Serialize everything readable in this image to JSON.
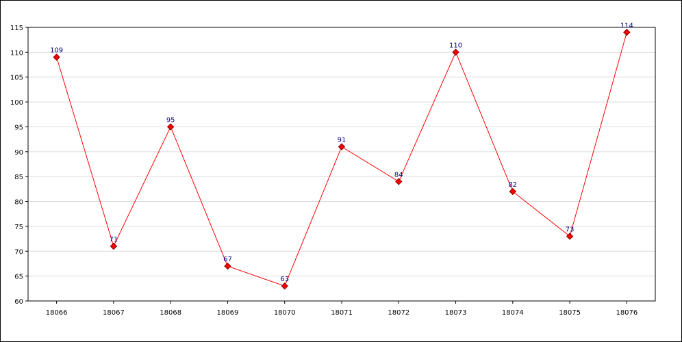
{
  "chart_data": {
    "type": "line",
    "title": "",
    "xlabel": "",
    "ylabel": "",
    "categories": [
      "18066",
      "18067",
      "18068",
      "18069",
      "18070",
      "18071",
      "18072",
      "18073",
      "18074",
      "18075",
      "18076"
    ],
    "series": [
      {
        "values": [
          109,
          71,
          95,
          67,
          63,
          91,
          84,
          110,
          82,
          73,
          114
        ]
      }
    ],
    "ylim": [
      60,
      115
    ],
    "yticks": [
      "60",
      "65",
      "70",
      "75",
      "80",
      "85",
      "90",
      "95",
      "100",
      "105",
      "110",
      "115"
    ],
    "grid": true,
    "line_color": "#ff0000",
    "marker_color": "#ff0000",
    "marker_outline": "#800000",
    "label_color": "#000080",
    "grid_color": "#dcdcdc"
  }
}
